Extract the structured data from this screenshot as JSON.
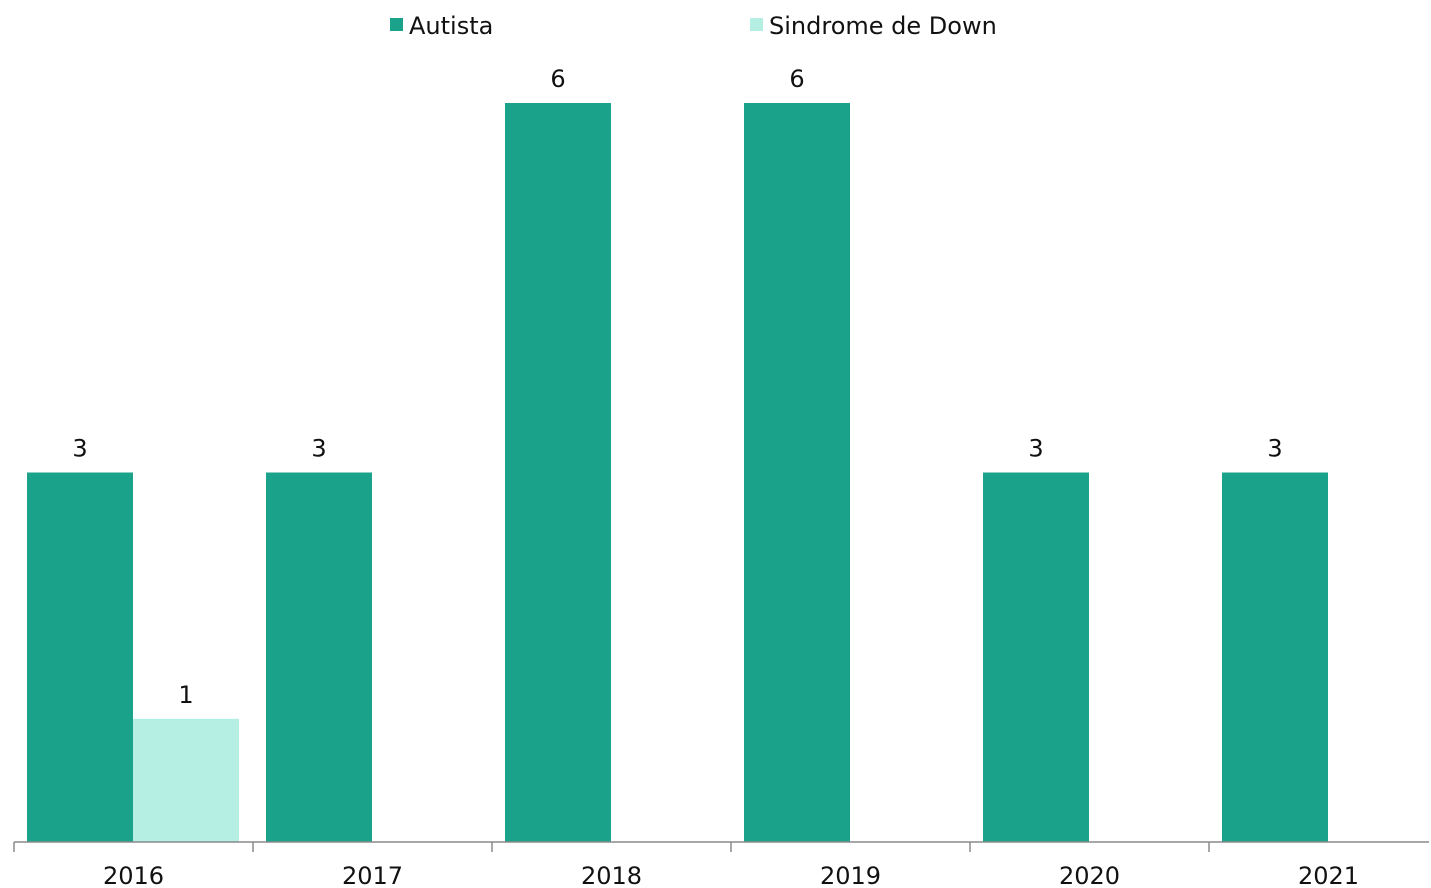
{
  "chart_data": {
    "type": "bar",
    "categories": [
      "2016",
      "2017",
      "2018",
      "2019",
      "2020",
      "2021"
    ],
    "series": [
      {
        "name": "Autista",
        "values": [
          3,
          3,
          6,
          6,
          3,
          3
        ],
        "color": "#1aa38a",
        "labels": [
          "3",
          "3",
          "6",
          "6",
          "3",
          "3"
        ]
      },
      {
        "name": "Sindrome de Down",
        "values": [
          1,
          0,
          0,
          0,
          0,
          0
        ],
        "color": "#b5eee3",
        "labels": [
          "1",
          "",
          "",
          "",
          "",
          ""
        ]
      }
    ],
    "ylim": [
      0,
      6
    ],
    "grid": false,
    "legend": "top-center",
    "title": "",
    "xlabel": "",
    "ylabel": ""
  }
}
